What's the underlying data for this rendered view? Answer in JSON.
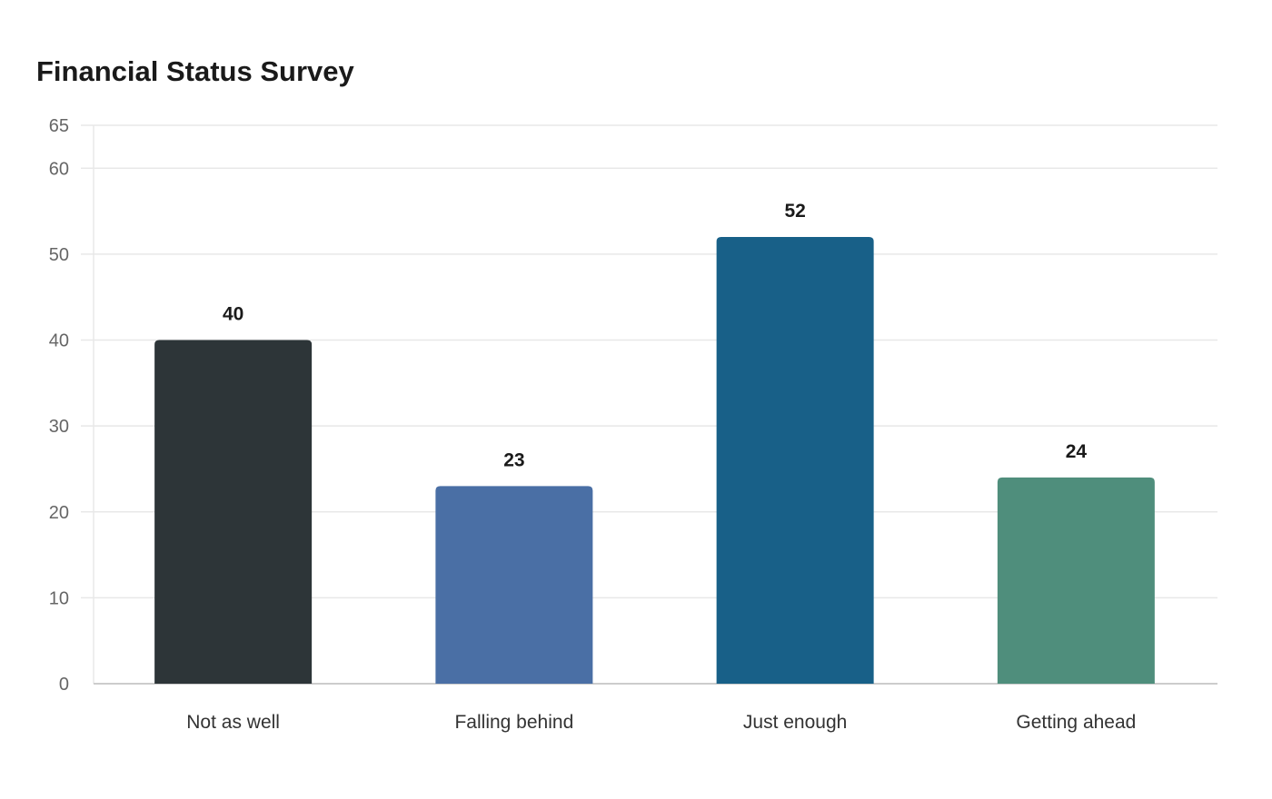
{
  "chart_data": {
    "type": "bar",
    "title": "Financial Status Survey",
    "xlabel": "",
    "ylabel": "",
    "categories": [
      "Not as well",
      "Falling behind",
      "Just enough",
      "Getting ahead"
    ],
    "values": [
      40,
      23,
      52,
      24
    ],
    "colors": [
      "#2d3538",
      "#4a6fa5",
      "#186088",
      "#4f8e7c"
    ],
    "ylim": [
      0,
      65
    ],
    "yticks": [
      0,
      10,
      20,
      30,
      40,
      50,
      60,
      65
    ],
    "grid": true,
    "legend": "none",
    "data_labels": true
  }
}
